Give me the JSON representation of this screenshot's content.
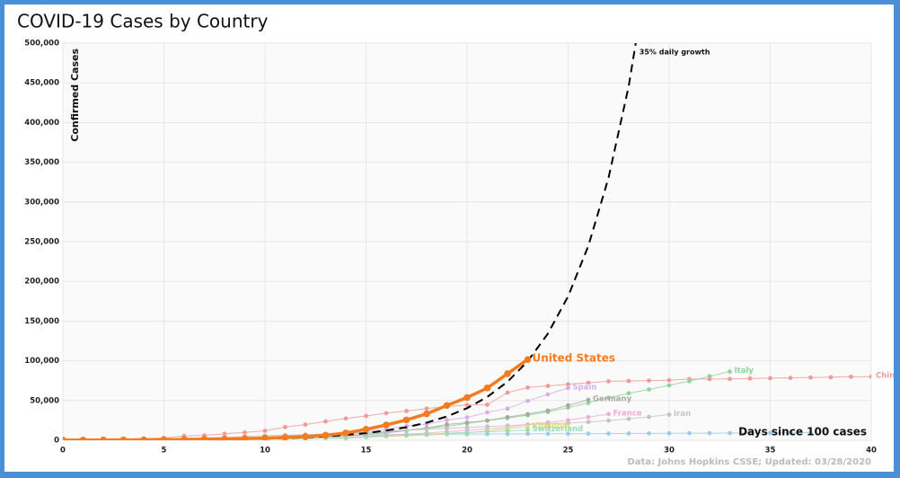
{
  "chart_data": {
    "type": "line",
    "title": "COVID-19 Cases by Country",
    "x_label": "Days since 100 cases",
    "y_label": "Confirmed Cases",
    "source": "Data: Johns Hopkins CSSE; Updated: 03/28/2020",
    "xlim": [
      0,
      40
    ],
    "xticks": [
      0,
      5,
      10,
      15,
      20,
      25,
      30,
      35,
      40
    ],
    "ylim": [
      0,
      500000
    ],
    "yticks": [
      0,
      {
        "value": 50000,
        "label": "50,000"
      },
      {
        "value": 100000,
        "label": "100,000"
      },
      {
        "value": 150000,
        "label": "150,000"
      },
      {
        "value": 200000,
        "label": "200,000"
      },
      {
        "value": 250000,
        "label": "250,000"
      },
      {
        "value": 300000,
        "label": "300,000"
      },
      {
        "value": 350000,
        "label": "350,000"
      },
      {
        "value": 400000,
        "label": "400,000"
      },
      {
        "value": 450000,
        "label": "450,000"
      },
      {
        "value": 500000,
        "label": "500,000"
      }
    ],
    "grid": true,
    "series": [
      {
        "color": "#9fcbe8",
        "values": [
          104,
          204,
          433,
          602,
          833,
          977,
          1261,
          1766,
          2337,
          3150,
          3736,
          4335,
          5186,
          5621,
          6088,
          6593,
          7041,
          7314,
          7478,
          7513,
          7755,
          7869,
          7979,
          8086,
          8162,
          8236,
          8320,
          8413,
          8565,
          8652,
          8799,
          8961,
          8961,
          9037,
          9137,
          9241,
          9332,
          9478
        ]
      },
      {
        "name": "China",
        "color": "#f09a9a",
        "values": [
          548,
          643,
          920,
          1406,
          2075,
          2877,
          5509,
          6087,
          8141,
          9802,
          11891,
          16630,
          19716,
          23707,
          27440,
          30587,
          34110,
          36814,
          39829,
          42354,
          44386,
          44759,
          59895,
          66358,
          68413,
          70513,
          72434,
          74211,
          74619,
          75077,
          75550,
          77001,
          77022,
          77241,
          77754,
          78166,
          78600,
          78928,
          79356,
          79932,
          80136
        ]
      },
      {
        "name": "Italy",
        "color": "#8fd49c",
        "values": [
          155,
          229,
          322,
          453,
          655,
          888,
          1128,
          1694,
          2036,
          2502,
          3089,
          3858,
          4636,
          5883,
          7375,
          9172,
          10149,
          12462,
          15113,
          17660,
          21157,
          24747,
          27980,
          31506,
          35713,
          41035,
          47021,
          53578,
          59138,
          63927,
          69176,
          74386,
          80589,
          86498
        ]
      },
      {
        "name": "Spain",
        "color": "#d4b0ea",
        "values": [
          120,
          165,
          222,
          259,
          400,
          500,
          673,
          1073,
          1695,
          2277,
          2277,
          5232,
          6391,
          7798,
          9942,
          11748,
          13910,
          17963,
          20410,
          25374,
          28768,
          35136,
          39885,
          49515,
          57786,
          65719
        ]
      },
      {
        "name": "Germany",
        "color": "#a9a9a0",
        "values": [
          130,
          159,
          196,
          262,
          482,
          670,
          799,
          1040,
          1176,
          1457,
          1908,
          2078,
          3675,
          4585,
          5795,
          7272,
          9257,
          12327,
          15320,
          19848,
          22213,
          24873,
          29056,
          32986,
          37323,
          43938,
          50871
        ]
      },
      {
        "name": "France",
        "color": "#f3abd6",
        "values": [
          100,
          130,
          191,
          204,
          285,
          377,
          653,
          949,
          1126,
          1209,
          1784,
          2281,
          2281,
          3661,
          4469,
          4499,
          6633,
          7652,
          9043,
          10871,
          12612,
          14282,
          16018,
          19856,
          22304,
          25233,
          29155,
          32964
        ]
      },
      {
        "name": "Iran",
        "color": "#c4c4c4",
        "values": [
          139,
          245,
          388,
          593,
          978,
          1501,
          2336,
          2922,
          3513,
          4747,
          5823,
          6566,
          7161,
          8042,
          9000,
          10075,
          11364,
          12729,
          13938,
          14991,
          16169,
          17361,
          18407,
          19644,
          20610,
          21638,
          23049,
          24811,
          27017,
          29406,
          32332
        ]
      },
      {
        "name": "Kingdom",
        "color": "#e6dc6a",
        "values": [
          116,
          163,
          206,
          273,
          321,
          382,
          456,
          456,
          798,
          1140,
          1140,
          1543,
          1950,
          2626,
          2689,
          3983,
          5018,
          5683,
          6650,
          8077,
          9529,
          11658,
          14543,
          17089
        ]
      },
      {
        "name": "Switzerland",
        "color": "#9adbb8",
        "values": [
          90,
          114,
          214,
          268,
          337,
          374,
          491,
          652,
          652,
          1139,
          1359,
          2200,
          2200,
          2700,
          3028,
          4075,
          5294,
          6575,
          7474,
          8795,
          9877,
          10897,
          11811,
          12928
        ]
      },
      {
        "name": "35% daily growth",
        "color": "#000000",
        "dashed": true,
        "values": [
          100,
          135,
          182,
          246,
          332,
          448,
          605,
          817,
          1103,
          1489,
          2011,
          2714,
          3664,
          4947,
          6678,
          9016,
          12171,
          16431,
          22182,
          29946,
          40427,
          54576,
          73678,
          99466,
          134279,
          181277,
          244724,
          330377,
          446009,
          602112
        ]
      },
      {
        "name": "United States",
        "color": "#f47b20",
        "highlight": true,
        "values": [
          158,
          221,
          319,
          435,
          541,
          704,
          994,
          1301,
          1630,
          2183,
          2770,
          3613,
          4596,
          6344,
          9197,
          13779,
          19273,
          25600,
          33276,
          43847,
          53740,
          65778,
          83836,
          101657
        ]
      }
    ]
  }
}
